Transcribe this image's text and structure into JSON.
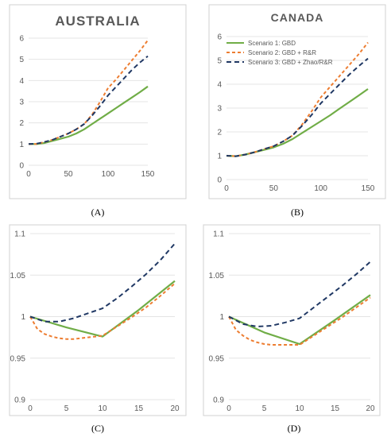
{
  "series_styles": [
    {
      "color": "#70ad47",
      "dash": ""
    },
    {
      "color": "#ed7d31",
      "dash": "4,3"
    },
    {
      "color": "#203864",
      "dash": "6,4"
    }
  ],
  "legend": {
    "entries": [
      "Scenario 1: GBD",
      "Scenario 2: GBD + R&R",
      "Scenario 3: GBD + Zhao/R&R"
    ]
  },
  "chart_data": [
    {
      "id": "A",
      "panel_label": "(A)",
      "type": "line",
      "title": "AUSTRALIA",
      "xlim": [
        0,
        150
      ],
      "ylim": [
        0,
        6
      ],
      "xticks": [
        "0",
        "50",
        "100",
        "150"
      ],
      "yticks": [
        "0",
        "1",
        "2",
        "3",
        "4",
        "5",
        "6"
      ],
      "xtick_values": [
        0,
        50,
        100,
        150
      ],
      "ytick_values": [
        0,
        1,
        2,
        3,
        4,
        5,
        6
      ],
      "series": [
        {
          "x": [
            0,
            10,
            20,
            30,
            40,
            50,
            60,
            70,
            80,
            90,
            100,
            110,
            120,
            130,
            140,
            150
          ],
          "values": [
            1.0,
            1.0,
            1.05,
            1.15,
            1.25,
            1.35,
            1.5,
            1.7,
            1.95,
            2.2,
            2.45,
            2.7,
            2.95,
            3.2,
            3.45,
            3.72
          ]
        },
        {
          "x": [
            0,
            10,
            20,
            30,
            40,
            50,
            60,
            70,
            80,
            90,
            100,
            110,
            120,
            130,
            140,
            150
          ],
          "values": [
            1.0,
            1.0,
            1.1,
            1.2,
            1.35,
            1.5,
            1.7,
            1.95,
            2.4,
            3.0,
            3.65,
            4.05,
            4.5,
            4.95,
            5.4,
            5.9
          ]
        },
        {
          "x": [
            0,
            10,
            20,
            30,
            40,
            50,
            60,
            70,
            80,
            90,
            100,
            110,
            120,
            130,
            140,
            150
          ],
          "values": [
            1.0,
            1.02,
            1.1,
            1.2,
            1.35,
            1.5,
            1.7,
            1.95,
            2.35,
            2.8,
            3.3,
            3.7,
            4.1,
            4.5,
            4.85,
            5.15
          ]
        }
      ]
    },
    {
      "id": "B",
      "panel_label": "(B)",
      "type": "line",
      "title": "CANADA",
      "xlim": [
        0,
        150
      ],
      "ylim": [
        0,
        6
      ],
      "xticks": [
        "0",
        "50",
        "100",
        "150"
      ],
      "yticks": [
        "0",
        "1",
        "2",
        "3",
        "4",
        "5",
        "6"
      ],
      "xtick_values": [
        0,
        50,
        100,
        150
      ],
      "ytick_values": [
        0,
        1,
        2,
        3,
        4,
        5,
        6
      ],
      "series": [
        {
          "x": [
            0,
            10,
            20,
            30,
            40,
            50,
            60,
            70,
            80,
            90,
            100,
            110,
            120,
            130,
            140,
            150
          ],
          "values": [
            1.0,
            0.98,
            1.05,
            1.15,
            1.25,
            1.35,
            1.5,
            1.7,
            1.95,
            2.2,
            2.45,
            2.7,
            2.98,
            3.25,
            3.52,
            3.8
          ]
        },
        {
          "x": [
            0,
            10,
            20,
            30,
            40,
            50,
            60,
            70,
            80,
            90,
            100,
            110,
            120,
            130,
            140,
            150
          ],
          "values": [
            1.0,
            0.98,
            1.05,
            1.15,
            1.28,
            1.4,
            1.6,
            1.85,
            2.3,
            2.85,
            3.45,
            3.9,
            4.35,
            4.8,
            5.25,
            5.75
          ]
        },
        {
          "x": [
            0,
            10,
            20,
            30,
            40,
            50,
            60,
            70,
            80,
            90,
            100,
            110,
            120,
            130,
            140,
            150
          ],
          "values": [
            1.0,
            0.98,
            1.05,
            1.15,
            1.28,
            1.4,
            1.6,
            1.85,
            2.25,
            2.7,
            3.2,
            3.6,
            4.0,
            4.4,
            4.75,
            5.08
          ]
        }
      ]
    },
    {
      "id": "C",
      "panel_label": "(C)",
      "type": "line",
      "title": "",
      "xlim": [
        0,
        20
      ],
      "ylim": [
        0.9,
        1.1
      ],
      "xticks": [
        "0",
        "5",
        "10",
        "15",
        "20"
      ],
      "yticks": [
        "0.9",
        "0.95",
        "1",
        "1.05",
        "1.1"
      ],
      "xtick_values": [
        0,
        5,
        10,
        15,
        20
      ],
      "ytick_values": [
        0.9,
        0.95,
        1.0,
        1.05,
        1.1
      ],
      "series": [
        {
          "x": [
            0,
            5,
            10,
            15,
            20
          ],
          "values": [
            1.0,
            0.987,
            0.976,
            1.008,
            1.043
          ]
        },
        {
          "x": [
            0,
            1,
            2,
            3,
            4,
            5,
            6,
            7,
            8,
            9,
            10,
            12,
            14,
            16,
            18,
            20
          ],
          "values": [
            1.0,
            0.985,
            0.979,
            0.976,
            0.974,
            0.973,
            0.973,
            0.974,
            0.975,
            0.976,
            0.977,
            0.988,
            0.999,
            1.011,
            1.025,
            1.04
          ]
        },
        {
          "x": [
            0,
            2,
            4,
            6,
            8,
            10,
            12,
            14,
            16,
            18,
            20
          ],
          "values": [
            1.0,
            0.994,
            0.994,
            0.998,
            1.004,
            1.01,
            1.022,
            1.036,
            1.051,
            1.068,
            1.088
          ]
        }
      ]
    },
    {
      "id": "D",
      "panel_label": "(D)",
      "type": "line",
      "title": "",
      "xlim": [
        0,
        20
      ],
      "ylim": [
        0.9,
        1.1
      ],
      "xticks": [
        "0",
        "5",
        "10",
        "15",
        "20"
      ],
      "yticks": [
        "0.9",
        "0.95",
        "1",
        "1.05",
        "1.1"
      ],
      "xtick_values": [
        0,
        5,
        10,
        15,
        20
      ],
      "ytick_values": [
        0.9,
        0.95,
        1.0,
        1.05,
        1.1
      ],
      "series": [
        {
          "x": [
            0,
            5,
            10,
            15,
            20
          ],
          "values": [
            1.0,
            0.981,
            0.967,
            0.996,
            1.026
          ]
        },
        {
          "x": [
            0,
            1,
            2,
            3,
            4,
            5,
            6,
            7,
            8,
            9,
            10,
            12,
            14,
            16,
            18,
            20
          ],
          "values": [
            1.0,
            0.984,
            0.977,
            0.972,
            0.969,
            0.967,
            0.966,
            0.966,
            0.966,
            0.966,
            0.966,
            0.977,
            0.988,
            0.999,
            1.011,
            1.023
          ]
        },
        {
          "x": [
            0,
            2,
            4,
            6,
            8,
            10,
            12,
            14,
            16,
            18,
            20
          ],
          "values": [
            1.0,
            0.991,
            0.988,
            0.989,
            0.993,
            0.998,
            1.011,
            1.024,
            1.037,
            1.051,
            1.066
          ]
        }
      ]
    }
  ]
}
